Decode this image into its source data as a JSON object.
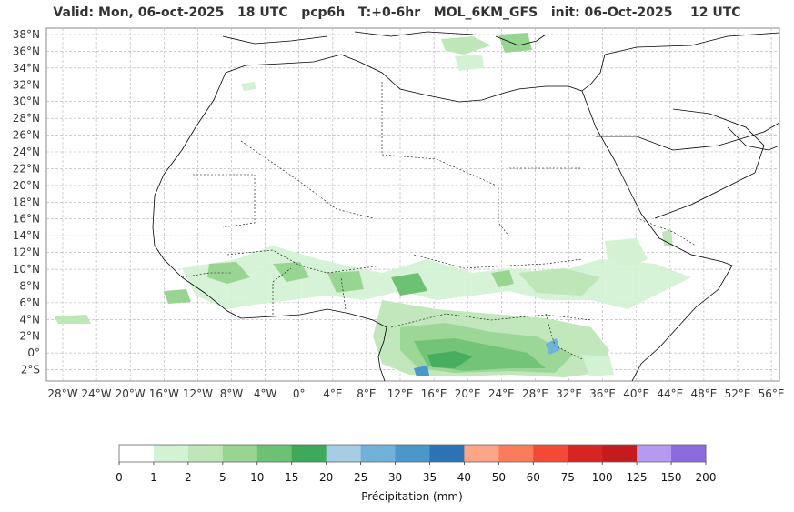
{
  "title": "Valid: Mon, 06-oct-2025   18 UTC   pcp6h   T:+0-6hr   MOL_6KM_GFS   init: 06-Oct-2025    12 UTC",
  "map": {
    "lon_range": [
      -30,
      57
    ],
    "lat_range": [
      -3,
      38.5
    ],
    "lat_ticks": [
      "38°N",
      "36°N",
      "34°N",
      "32°N",
      "30°N",
      "28°N",
      "26°N",
      "24°N",
      "22°N",
      "20°N",
      "18°N",
      "16°N",
      "14°N",
      "12°N",
      "10°N",
      "8°N",
      "6°N",
      "4°N",
      "2°N",
      "0°",
      "2°S"
    ],
    "lon_ticks": [
      "28°W",
      "24°W",
      "20°W",
      "16°W",
      "12°W",
      "8°W",
      "4°W",
      "0°",
      "4°E",
      "8°E",
      "12°E",
      "16°E",
      "20°E",
      "24°E",
      "28°E",
      "32°E",
      "36°E",
      "40°E",
      "44°E",
      "48°E",
      "52°E",
      "56°E"
    ],
    "gridlines": true
  },
  "colorbar": {
    "label": "Précipitation (mm)",
    "ticks": [
      "0",
      "1",
      "2",
      "5",
      "10",
      "15",
      "20",
      "25",
      "30",
      "35",
      "40",
      "50",
      "60",
      "75",
      "100",
      "125",
      "150",
      "200"
    ],
    "colors": [
      "#ffffff",
      "#d3f2d3",
      "#bfe6b8",
      "#98d592",
      "#6cc173",
      "#3fa95a",
      "#a5cde3",
      "#73b2d8",
      "#4a97c9",
      "#2b73b5",
      "#fca588",
      "#fb7c5c",
      "#f24a36",
      "#d72523",
      "#c51b1d",
      "#b49bf0",
      "#8c6bde",
      "#4b0082"
    ]
  }
}
